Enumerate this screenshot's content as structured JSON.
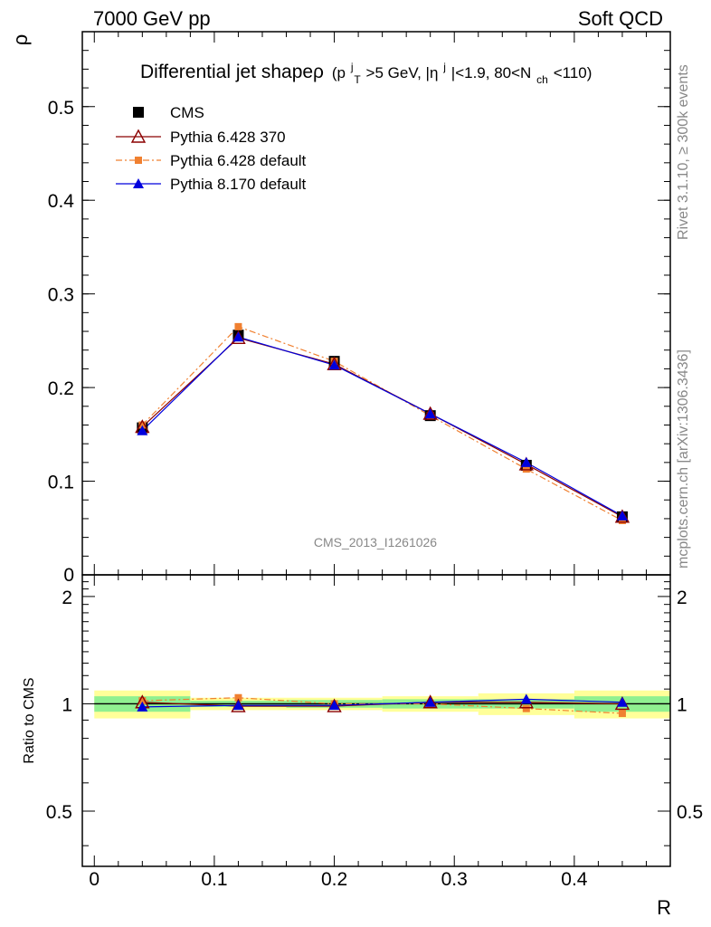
{
  "header": {
    "left": "7000 GeV pp",
    "right": "Soft QCD"
  },
  "side_text": {
    "rivet": "Rivet 3.1.10, ≥ 300k events",
    "mcplots": "mcplots.cern.ch [arXiv:1306.3436]"
  },
  "title": {
    "main": "Differential jet shapeρ",
    "cond": [
      "(p",
      "j",
      "T",
      ">5 GeV, |η",
      "j",
      "|<1.9, 80<N",
      "ch",
      "<110)"
    ]
  },
  "analysis_tag": "CMS_2013_I1261026",
  "colors": {
    "cms": "#000000",
    "p6_370": "#8b0000",
    "p6_def": "#f08030",
    "p8_def": "#0000dd",
    "band_inner": "#90f090",
    "band_outer": "#ffff99"
  },
  "chart_data": [
    {
      "type": "line",
      "xlabel": "",
      "ylabel": "ρ",
      "xlim": [
        -0.01,
        0.48
      ],
      "ylim": [
        0,
        0.58
      ],
      "yticks": [
        0.1,
        0.2,
        0.3,
        0.4,
        0.5
      ],
      "ytick_labels": [
        "0.1",
        "0.2",
        "0.3",
        "0.4",
        "0.5"
      ],
      "y_zero_label": "0",
      "legend_position": "top-left",
      "x": [
        0.04,
        0.12,
        0.2,
        0.28,
        0.36,
        0.44
      ],
      "series": [
        {
          "name": "CMS",
          "key": "cms",
          "marker": "square",
          "values": [
            0.157,
            0.256,
            0.228,
            0.17,
            0.117,
            0.062
          ]
        },
        {
          "name": "Pythia 6.428 370",
          "key": "p6_370",
          "marker": "open-triangle",
          "values": [
            0.158,
            0.253,
            0.225,
            0.172,
            0.118,
            0.062
          ]
        },
        {
          "name": "Pythia 6.428 default",
          "key": "p6_def",
          "marker": "small-square",
          "values": [
            0.16,
            0.265,
            0.228,
            0.17,
            0.113,
            0.058
          ]
        },
        {
          "name": "Pythia 8.170 default",
          "key": "p8_def",
          "marker": "triangle",
          "values": [
            0.154,
            0.254,
            0.224,
            0.172,
            0.12,
            0.063
          ]
        }
      ]
    },
    {
      "type": "line",
      "xlabel": "R",
      "ylabel": "Ratio to CMS",
      "xlim": [
        -0.01,
        0.48
      ],
      "ylim": [
        0.35,
        2.3
      ],
      "y_scale": "log",
      "yticks": [
        0.5,
        1,
        2
      ],
      "ytick_labels": [
        "0.5",
        "1",
        "2"
      ],
      "xticks": [
        0,
        0.1,
        0.2,
        0.3,
        0.4
      ],
      "xtick_labels": [
        "0",
        "0.1",
        "0.2",
        "0.3",
        "0.4"
      ],
      "x": [
        0.04,
        0.12,
        0.2,
        0.28,
        0.36,
        0.44
      ],
      "bands": {
        "bin_edges": [
          0,
          0.08,
          0.16,
          0.24,
          0.32,
          0.4,
          0.48
        ],
        "inner_halfwidth": [
          0.05,
          0.02,
          0.025,
          0.03,
          0.03,
          0.05
        ],
        "outer_halfwidth": [
          0.09,
          0.04,
          0.04,
          0.05,
          0.07,
          0.09
        ]
      },
      "series": [
        {
          "name": "CMS",
          "key": "cms",
          "marker": "none",
          "values": [
            1.0,
            1.0,
            1.0,
            1.0,
            1.0,
            1.0
          ]
        },
        {
          "name": "Pythia 6.428 370",
          "key": "p6_370",
          "marker": "open-triangle",
          "values": [
            1.01,
            0.985,
            0.985,
            1.01,
            1.01,
            1.0
          ]
        },
        {
          "name": "Pythia 6.428 default",
          "key": "p6_def",
          "marker": "small-square",
          "values": [
            1.02,
            1.04,
            1.0,
            1.0,
            0.97,
            0.94
          ]
        },
        {
          "name": "Pythia 8.170 default",
          "key": "p8_def",
          "marker": "triangle",
          "values": [
            0.98,
            0.99,
            0.99,
            1.01,
            1.03,
            1.01
          ]
        }
      ]
    }
  ]
}
